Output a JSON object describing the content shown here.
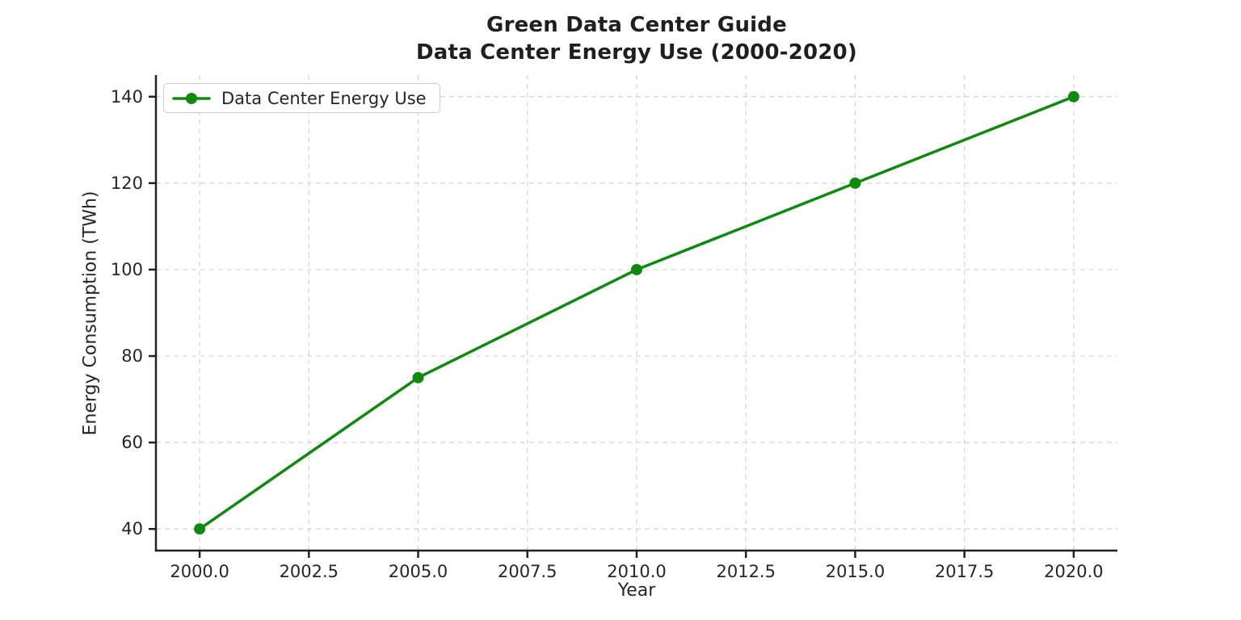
{
  "chart_data": {
    "type": "line",
    "title_lines": [
      "Green Data Center Guide",
      "Data Center Energy Use (2000-2020)"
    ],
    "xlabel": "Year",
    "ylabel": "Energy Consumption (TWh)",
    "x": [
      2000,
      2005,
      2010,
      2015,
      2020
    ],
    "series": [
      {
        "name": "Data Center Energy Use",
        "values": [
          40,
          75,
          100,
          120,
          140
        ],
        "color": "#0e8b0e",
        "marker": "circle"
      }
    ],
    "xlim": [
      1999,
      2021
    ],
    "ylim": [
      35,
      145
    ],
    "x_tick_values": [
      2000,
      2002.5,
      2005,
      2007.5,
      2010,
      2012.5,
      2015,
      2017.5,
      2020
    ],
    "x_tick_labels": [
      "2000.0",
      "2002.5",
      "2005.0",
      "2007.5",
      "2010.0",
      "2012.5",
      "2015.0",
      "2017.5",
      "2020.0"
    ],
    "y_tick_values": [
      40,
      60,
      80,
      100,
      120,
      140
    ],
    "y_tick_labels": [
      "40",
      "60",
      "80",
      "100",
      "120",
      "140"
    ],
    "grid": true,
    "grid_color": "#d4d4d4",
    "axis_color": "#212121",
    "text_color": "#262626",
    "background": "#ffffff",
    "legend_position": "upper-left"
  }
}
